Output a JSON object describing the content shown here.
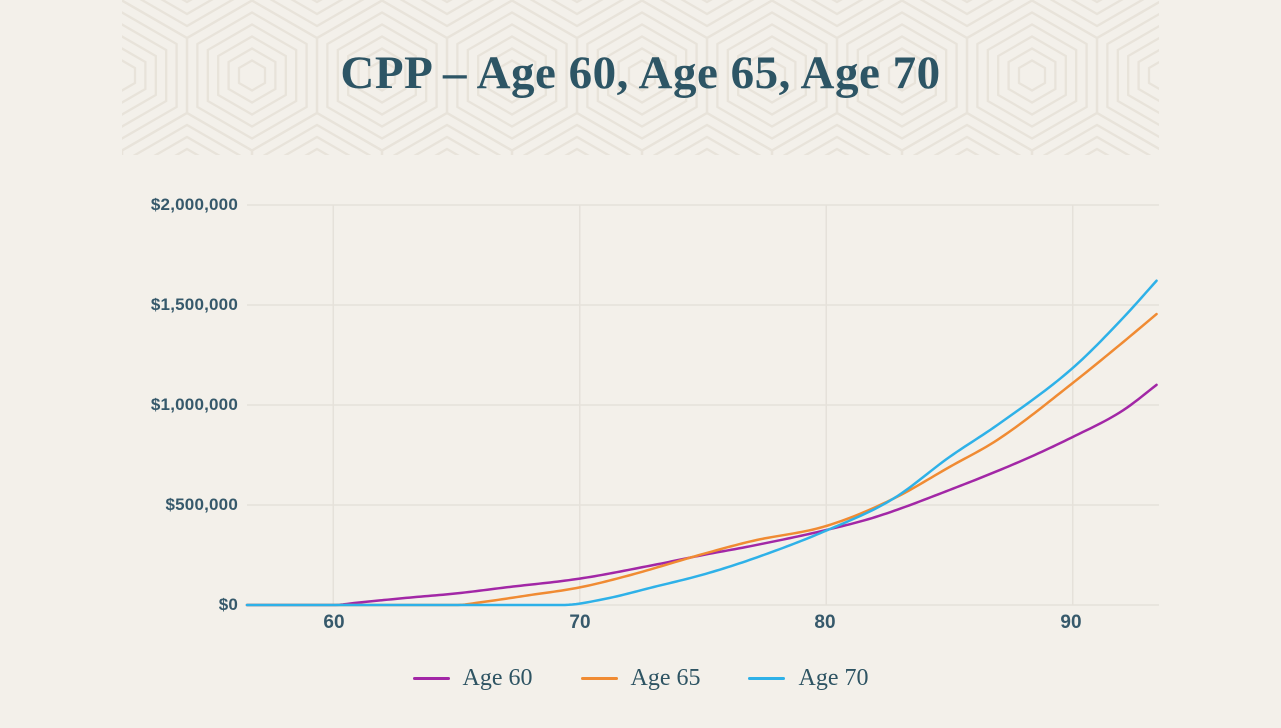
{
  "banner": {
    "title": "CPP – Age 60, Age 65, Age 70",
    "title_color": "#2d5565",
    "pattern_color": "#e8e3da",
    "background": "#f3f0ea"
  },
  "chart_data": {
    "type": "line",
    "title": "CPP – Age 60, Age 65, Age 70",
    "xlabel": "",
    "ylabel": "",
    "grid": true,
    "legend_position": "bottom",
    "x_axis": {
      "range": [
        56.5,
        93.5
      ],
      "ticks": [
        "60",
        "70",
        "80",
        "90"
      ],
      "tick_values": [
        60,
        70,
        80,
        90
      ]
    },
    "y_axis": {
      "range": [
        0,
        2000000
      ],
      "tick_labels": [
        "$0",
        "$500,000",
        "$1,000,000",
        "$1,500,000",
        "$2,000,000"
      ],
      "tick_values": [
        0,
        500000,
        1000000,
        1500000,
        2000000
      ]
    },
    "gridline_color": "#e5e1da",
    "axis_label_color": "#36596b",
    "series": [
      {
        "name": "Age 60",
        "color": "#a227a6",
        "points": [
          [
            56.5,
            0
          ],
          [
            58,
            0
          ],
          [
            60,
            0
          ],
          [
            61,
            12000
          ],
          [
            63,
            36000
          ],
          [
            65,
            58000
          ],
          [
            67,
            88000
          ],
          [
            70,
            132000
          ],
          [
            73,
            200000
          ],
          [
            75,
            250000
          ],
          [
            77,
            296000
          ],
          [
            80,
            375000
          ],
          [
            82,
            440000
          ],
          [
            85,
            575000
          ],
          [
            88,
            725000
          ],
          [
            90,
            840000
          ],
          [
            92,
            970000
          ],
          [
            93.5,
            1110000
          ]
        ]
      },
      {
        "name": "Age 65",
        "color": "#f08b33",
        "points": [
          [
            56.5,
            0
          ],
          [
            60,
            0
          ],
          [
            65,
            0
          ],
          [
            66,
            14000
          ],
          [
            68,
            50000
          ],
          [
            70,
            88000
          ],
          [
            72,
            148000
          ],
          [
            75,
            255000
          ],
          [
            77,
            320000
          ],
          [
            80,
            395000
          ],
          [
            82.7,
            530000
          ],
          [
            85,
            690000
          ],
          [
            87,
            830000
          ],
          [
            90,
            1110000
          ],
          [
            92,
            1310000
          ],
          [
            93.5,
            1465000
          ]
        ]
      },
      {
        "name": "Age 70",
        "color": "#2eb1e8",
        "points": [
          [
            56.5,
            0
          ],
          [
            60,
            0
          ],
          [
            65,
            0
          ],
          [
            69.3,
            0
          ],
          [
            71,
            30000
          ],
          [
            73,
            90000
          ],
          [
            75,
            152000
          ],
          [
            77,
            230000
          ],
          [
            80,
            372000
          ],
          [
            82.7,
            530000
          ],
          [
            85,
            740000
          ],
          [
            87,
            905000
          ],
          [
            90,
            1185000
          ],
          [
            92,
            1430000
          ],
          [
            93.5,
            1635000
          ]
        ]
      }
    ]
  }
}
